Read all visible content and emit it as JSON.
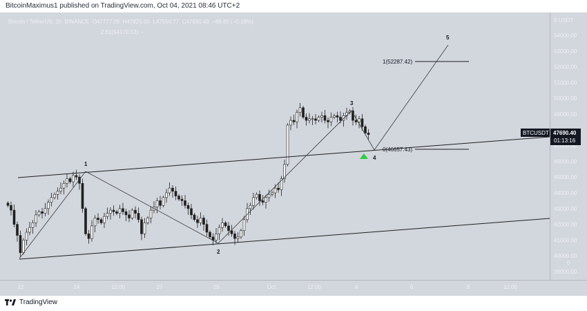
{
  "header": {
    "published_text": "BitcoinMaximus1 published on TradingView.com, Oct 04, 2021 08:46 UTC+2"
  },
  "legend": {
    "symbol": "Bitcoin / TetherUS, 2h, BINANCE",
    "open": "47777.05",
    "high": "47825.00",
    "low": "47550.77",
    "close": "47690.40",
    "change": "−86.65 (−0.18%)",
    "fib_ext": "2.61(54170.53)"
  },
  "price_scale": {
    "currency": "USDT",
    "currency_count": "5",
    "ticks": [
      "54000.00",
      "53000.00",
      "52000.00",
      "51000.00",
      "50000.00",
      "49000.00",
      "47000.00",
      "46000.00",
      "45000.00",
      "44000.00",
      "43000.00",
      "42000.00",
      "41000.00",
      "40000.00",
      "39000.00"
    ],
    "zero": "0",
    "ticker_badge": "BTCUSDT",
    "last_price": "47690.40",
    "countdown": "01:13:16"
  },
  "time_axis": {
    "labels": [
      "22",
      "24",
      "12:00",
      "27",
      "29",
      "Oct",
      "12:00",
      "4",
      "6",
      "8",
      "12:00"
    ]
  },
  "annotations": {
    "wave1": "1",
    "wave2": "2",
    "wave3": "3",
    "wave4": "4",
    "wave5": "5",
    "fib1": "1(52287.42)",
    "fib0": "0(46657.43)"
  },
  "footer": {
    "brand": "TradingView"
  },
  "colors": {
    "background": "#d2d6dd",
    "candle": "#ffffff",
    "line": "#1f1f1f",
    "arrow": "#2ecc40",
    "badge": "#131722"
  },
  "chart_data": {
    "type": "candlestick",
    "symbol": "BTCUSDT",
    "exchange": "BINANCE",
    "timeframe": "2h",
    "ylim": [
      38200,
      55200
    ],
    "x_dates": [
      "Sep 21",
      "Oct 10"
    ],
    "closes": [
      43200,
      42900,
      42000,
      41300,
      40200,
      41000,
      41500,
      41800,
      42100,
      42600,
      42800,
      42700,
      43000,
      43400,
      43700,
      43900,
      44100,
      44300,
      44600,
      44900,
      44700,
      45100,
      45000,
      44600,
      43000,
      41400,
      41100,
      41900,
      42400,
      42300,
      42100,
      42500,
      42700,
      42900,
      42800,
      42700,
      43000,
      42800,
      42600,
      42400,
      42900,
      42700,
      42300,
      41400,
      42100,
      42400,
      42900,
      43100,
      43500,
      43200,
      43700,
      44000,
      44300,
      44100,
      43800,
      43600,
      43500,
      43200,
      43000,
      42600,
      42300,
      42100,
      42400,
      42000,
      41500,
      41200,
      41000,
      41400,
      41800,
      42100,
      41900,
      41600,
      41400,
      41100,
      41200,
      41600,
      42300,
      43000,
      43200,
      43700,
      43900,
      43500,
      43400,
      43700,
      43900,
      44000,
      44300,
      44200,
      44900,
      45800,
      48300,
      48600,
      48500,
      49100,
      49400,
      48800,
      48600,
      48700,
      48700,
      48600,
      48800,
      48900,
      48600,
      48500,
      48800,
      48900,
      48800,
      48600,
      48900,
      49100,
      49200,
      48600,
      48500,
      48700,
      48200,
      47800,
      47700
    ]
  }
}
